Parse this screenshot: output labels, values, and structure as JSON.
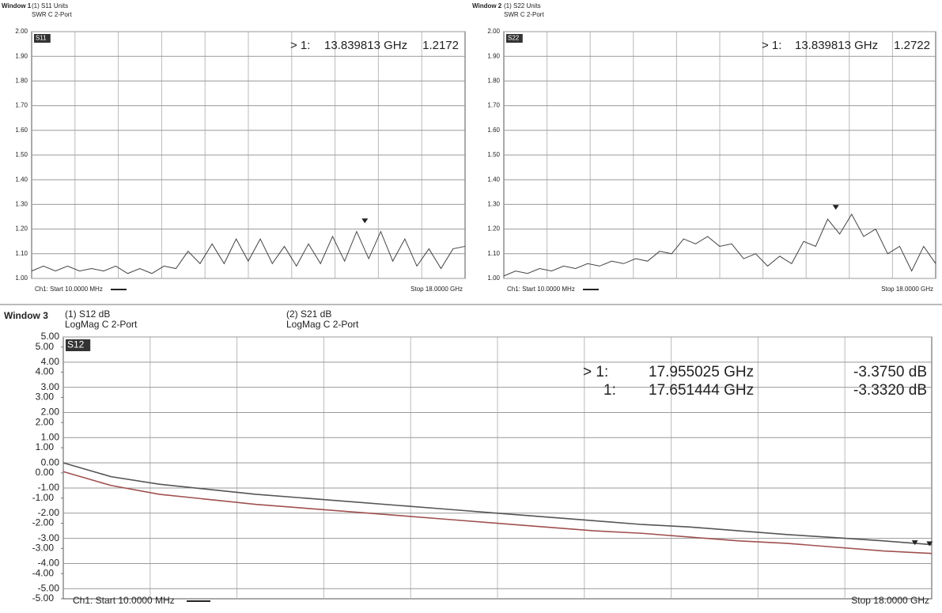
{
  "chart_data": [
    {
      "type": "line",
      "window": "Window 1",
      "trace_tag": "S11",
      "start_label": "Ch1: Start 10.0000 MHz",
      "stop_label": "Stop 18.0000 GHz",
      "xlim": [
        0.01,
        18
      ],
      "ylim": [
        1.0,
        2.0
      ],
      "yticks": [
        {
          "value": 1.0,
          "label": "1.00"
        },
        {
          "value": 1.1,
          "label": "1.10"
        },
        {
          "value": 1.2,
          "label": "1.20"
        },
        {
          "value": 1.3,
          "label": "1.30"
        },
        {
          "value": 1.4,
          "label": "1.40"
        },
        {
          "value": 1.5,
          "label": "1.50"
        },
        {
          "value": 1.6,
          "label": "1.60"
        },
        {
          "value": 1.7,
          "label": "1.70"
        },
        {
          "value": 1.8,
          "label": "1.80"
        },
        {
          "value": 1.9,
          "label": "1.90"
        },
        {
          "value": 2.0,
          "label": "2.00"
        }
      ],
      "grid": true,
      "x": [
        0.01,
        0.5,
        1,
        1.5,
        2,
        2.5,
        3,
        3.5,
        4,
        4.5,
        5,
        5.5,
        6,
        6.5,
        7,
        7.5,
        8,
        8.5,
        9,
        9.5,
        10,
        10.5,
        11,
        11.5,
        12,
        12.5,
        13,
        13.5,
        14,
        14.5,
        15,
        15.5,
        16,
        16.5,
        17,
        17.5,
        18
      ],
      "series": [
        {
          "name": "(1) S11 Units",
          "format": "SWR C 2-Port",
          "color": "#444444",
          "values": [
            1.03,
            1.05,
            1.03,
            1.05,
            1.03,
            1.04,
            1.03,
            1.05,
            1.02,
            1.04,
            1.02,
            1.05,
            1.04,
            1.11,
            1.06,
            1.14,
            1.06,
            1.16,
            1.07,
            1.16,
            1.06,
            1.13,
            1.05,
            1.14,
            1.06,
            1.17,
            1.07,
            1.19,
            1.08,
            1.19,
            1.07,
            1.16,
            1.05,
            1.12,
            1.04,
            1.12,
            1.13
          ]
        }
      ],
      "markers": [
        {
          "label": "> 1:",
          "x": 13.839813,
          "x_label": "13.839813 GHz",
          "value": 1.2172
        }
      ]
    },
    {
      "type": "line",
      "window": "Window 2",
      "trace_tag": "S22",
      "start_label": "Ch1: Start 10.0000 MHz",
      "stop_label": "Stop 18.0000 GHz",
      "xlim": [
        0.01,
        18
      ],
      "ylim": [
        1.0,
        2.0
      ],
      "yticks": [
        {
          "value": 1.0,
          "label": "1.00"
        },
        {
          "value": 1.1,
          "label": "1.10"
        },
        {
          "value": 1.2,
          "label": "1.20"
        },
        {
          "value": 1.3,
          "label": "1.30"
        },
        {
          "value": 1.4,
          "label": "1.40"
        },
        {
          "value": 1.5,
          "label": "1.50"
        },
        {
          "value": 1.6,
          "label": "1.60"
        },
        {
          "value": 1.7,
          "label": "1.70"
        },
        {
          "value": 1.8,
          "label": "1.80"
        },
        {
          "value": 1.9,
          "label": "1.90"
        },
        {
          "value": 2.0,
          "label": "2.00"
        }
      ],
      "grid": true,
      "x": [
        0.01,
        0.5,
        1,
        1.5,
        2,
        2.5,
        3,
        3.5,
        4,
        4.5,
        5,
        5.5,
        6,
        6.5,
        7,
        7.5,
        8,
        8.5,
        9,
        9.5,
        10,
        10.5,
        11,
        11.5,
        12,
        12.5,
        13,
        13.5,
        14,
        14.5,
        15,
        15.5,
        16,
        16.5,
        17,
        17.5,
        18
      ],
      "series": [
        {
          "name": "(1) S22 Units",
          "format": "SWR C 2-Port",
          "color": "#444444",
          "values": [
            1.01,
            1.03,
            1.02,
            1.04,
            1.03,
            1.05,
            1.04,
            1.06,
            1.05,
            1.07,
            1.06,
            1.08,
            1.07,
            1.11,
            1.1,
            1.16,
            1.14,
            1.17,
            1.13,
            1.14,
            1.08,
            1.1,
            1.05,
            1.09,
            1.06,
            1.15,
            1.13,
            1.24,
            1.18,
            1.26,
            1.17,
            1.2,
            1.1,
            1.13,
            1.03,
            1.13,
            1.06
          ]
        }
      ],
      "markers": [
        {
          "label": "> 1:",
          "x": 13.839813,
          "x_label": "13.839813 GHz",
          "value": 1.2722
        }
      ]
    },
    {
      "type": "line",
      "window": "Window 3",
      "trace_tag": "S12",
      "start_label": "Ch1: Start 10.0000 MHz",
      "stop_label": "Stop 18.0000 GHz",
      "xlim": [
        0.01,
        18
      ],
      "ylim": [
        -5.4,
        5
      ],
      "y2lim": [
        -5,
        5.4
      ],
      "yticks": [
        {
          "value": 5,
          "label": "5.00"
        },
        {
          "value": 4,
          "label": "4.00"
        },
        {
          "value": 3,
          "label": "3.00"
        },
        {
          "value": 2,
          "label": "2.00"
        },
        {
          "value": 1,
          "label": "1.00"
        },
        {
          "value": 0,
          "label": "0.00"
        },
        {
          "value": -1,
          "label": "-1.00"
        },
        {
          "value": -2,
          "label": "-2.00"
        },
        {
          "value": -3,
          "label": "-3.00"
        },
        {
          "value": -4,
          "label": "-4.00"
        },
        {
          "value": -5,
          "label": "-5.00"
        }
      ],
      "y2ticks": [
        {
          "value": 5,
          "label": "5.00"
        },
        {
          "value": 4,
          "label": "4.00"
        },
        {
          "value": 3,
          "label": "3.00"
        },
        {
          "value": 2,
          "label": "2.00"
        },
        {
          "value": 1,
          "label": "1.00"
        },
        {
          "value": 0,
          "label": "0.00"
        },
        {
          "value": -1,
          "label": "-1.00"
        },
        {
          "value": -2,
          "label": "-2.00"
        },
        {
          "value": -3,
          "label": "-3.00"
        },
        {
          "value": -4,
          "label": "-4.00"
        },
        {
          "value": -5,
          "label": "-5.00"
        }
      ],
      "grid": true,
      "x": [
        0.01,
        1,
        2,
        3,
        4,
        5,
        6,
        7,
        8,
        9,
        10,
        11,
        12,
        13,
        14,
        15,
        16,
        17,
        18
      ],
      "series": [
        {
          "name": "(1) S12 dB",
          "format": "LogMag C 2-Port",
          "color": "#555555",
          "values": [
            0.0,
            -0.55,
            -0.85,
            -1.05,
            -1.25,
            -1.4,
            -1.55,
            -1.7,
            -1.85,
            -2.0,
            -2.15,
            -2.3,
            -2.45,
            -2.55,
            -2.7,
            -2.85,
            -2.97,
            -3.1,
            -3.25
          ]
        },
        {
          "name": "(2) S21 dB",
          "format": "LogMag C 2-Port",
          "color": "#a05050",
          "axis": "y2",
          "values": [
            0.05,
            -0.5,
            -0.85,
            -1.05,
            -1.25,
            -1.4,
            -1.55,
            -1.7,
            -1.85,
            -2.0,
            -2.15,
            -2.3,
            -2.4,
            -2.55,
            -2.7,
            -2.8,
            -2.95,
            -3.1,
            -3.2
          ]
        }
      ],
      "markers": [
        {
          "label": "> 1:",
          "x": 17.955025,
          "x_label": "17.955025 GHz",
          "value": -3.375,
          "value_label": "-3.3750 dB"
        },
        {
          "label": "1:",
          "x": 17.651444,
          "x_label": "17.651444 GHz",
          "value": -3.332,
          "value_label": "-3.3320 dB"
        }
      ]
    }
  ]
}
